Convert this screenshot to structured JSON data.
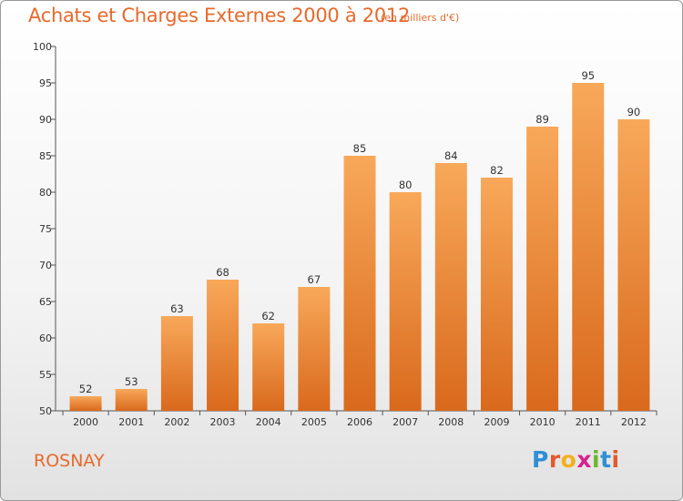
{
  "title": "Achats et Charges Externes 2000 à 2012",
  "unit": "(en milliers d'€)",
  "place": "ROSNAY",
  "logo": {
    "text": "Proxiti",
    "colors": [
      "#2d8fd6",
      "#e35a2e",
      "#f2b11c",
      "#d9208c",
      "#6bb82c",
      "#2d8fd6",
      "#e35a2e"
    ]
  },
  "colors": {
    "bar_light": "#f8a85a",
    "bar_dark": "#d9691c",
    "accent": "#e8692b",
    "axis": "#555555"
  },
  "chart_data": {
    "type": "bar",
    "categories": [
      "2000",
      "2001",
      "2002",
      "2003",
      "2004",
      "2005",
      "2006",
      "2007",
      "2008",
      "2009",
      "2010",
      "2011",
      "2012"
    ],
    "values": [
      52,
      53,
      63,
      68,
      62,
      67,
      85,
      80,
      84,
      82,
      89,
      95,
      90
    ],
    "ylim": [
      50,
      100
    ],
    "yticks": [
      50,
      55,
      60,
      65,
      70,
      75,
      80,
      85,
      90,
      95,
      100
    ],
    "grid": false,
    "data_labels": true
  }
}
